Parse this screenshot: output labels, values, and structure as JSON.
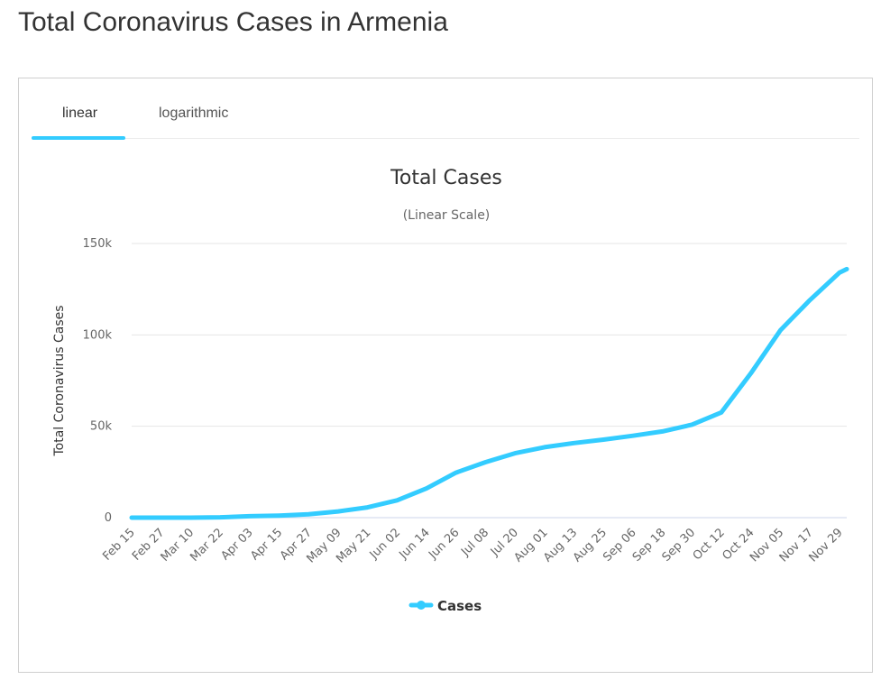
{
  "page": {
    "title": "Total Coronavirus Cases in Armenia"
  },
  "tabs": [
    {
      "label": "linear",
      "active": true
    },
    {
      "label": "logarithmic",
      "active": false
    }
  ],
  "colors": {
    "series": "#33ccff",
    "grid": "#e6e6e6",
    "axis": "#ccd6eb"
  },
  "chart_data": {
    "type": "line",
    "title": "Total Cases",
    "subtitle": "(Linear Scale)",
    "ylabel": "Total Coronavirus Cases",
    "xlabel": "",
    "ylim": [
      0,
      150000
    ],
    "grid": true,
    "legend_position": "bottom-center",
    "y_ticks": [
      {
        "value": 0,
        "label": "0"
      },
      {
        "value": 50000,
        "label": "50k"
      },
      {
        "value": 100000,
        "label": "100k"
      },
      {
        "value": 150000,
        "label": "150k"
      }
    ],
    "x_tick_labels": [
      "Feb 15",
      "Feb 27",
      "Mar 10",
      "Mar 22",
      "Apr 03",
      "Apr 15",
      "Apr 27",
      "May 09",
      "May 21",
      "Jun 02",
      "Jun 14",
      "Jun 26",
      "Jul 08",
      "Jul 20",
      "Aug 01",
      "Aug 13",
      "Aug 25",
      "Sep 06",
      "Sep 18",
      "Sep 30",
      "Oct 12",
      "Oct 24",
      "Nov 05",
      "Nov 17",
      "Nov 29"
    ],
    "series": [
      {
        "name": "Cases",
        "color": "#33ccff",
        "points": [
          [
            "Feb 15",
            0
          ],
          [
            "Feb 27",
            0
          ],
          [
            "Mar 10",
            1
          ],
          [
            "Mar 22",
            194
          ],
          [
            "Apr 03",
            770
          ],
          [
            "Apr 15",
            1111
          ],
          [
            "Apr 27",
            1808
          ],
          [
            "May 09",
            3392
          ],
          [
            "May 21",
            5606
          ],
          [
            "Jun 02",
            9492
          ],
          [
            "Jun 14",
            16004
          ],
          [
            "Jun 26",
            24645
          ],
          [
            "Jul 08",
            30346
          ],
          [
            "Jul 20",
            35254
          ],
          [
            "Aug 01",
            38550
          ],
          [
            "Aug 13",
            40794
          ],
          [
            "Aug 25",
            42692
          ],
          [
            "Sep 06",
            44783
          ],
          [
            "Sep 18",
            47154
          ],
          [
            "Sep 30",
            50850
          ],
          [
            "Oct 12",
            57566
          ],
          [
            "Oct 24",
            79000
          ],
          [
            "Nov 05",
            102500
          ],
          [
            "Nov 17",
            119000
          ],
          [
            "Nov 29",
            134000
          ],
          [
            "Dec 02",
            136000
          ]
        ]
      }
    ]
  }
}
